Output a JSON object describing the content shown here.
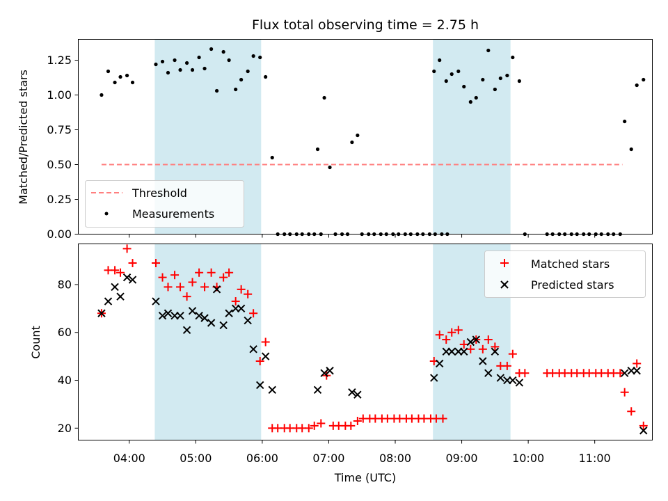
{
  "chart_data": [
    {
      "type": "scatter",
      "title": "Flux total observing time = 2.75 h",
      "ylabel": "Matched/Predicted stars",
      "xlabel": "",
      "ylim": [
        0,
        1.4
      ],
      "xlim": [
        "03:14",
        "11:52"
      ],
      "yticks": [
        "0.00",
        "0.25",
        "0.50",
        "0.75",
        "1.00",
        "1.25"
      ],
      "shaded_intervals": [
        [
          "04:23",
          "05:59"
        ],
        [
          "08:34",
          "09:44"
        ]
      ],
      "shade_color": "#add8e6",
      "legend_position": "lower-left",
      "threshold": {
        "name": "Threshold",
        "value": 0.5,
        "x_start": "03:35",
        "x_end": "11:25",
        "color": "#ff7f7f"
      },
      "series": [
        {
          "name": "Measurements",
          "color": "#000000",
          "points": [
            [
              "03:35",
              1.0
            ],
            [
              "03:41",
              1.17
            ],
            [
              "03:47",
              1.09
            ],
            [
              "03:52",
              1.13
            ],
            [
              "03:58",
              1.14
            ],
            [
              "04:03",
              1.09
            ],
            [
              "04:24",
              1.22
            ],
            [
              "04:30",
              1.24
            ],
            [
              "04:35",
              1.16
            ],
            [
              "04:41",
              1.25
            ],
            [
              "04:46",
              1.18
            ],
            [
              "04:52",
              1.23
            ],
            [
              "04:57",
              1.18
            ],
            [
              "05:03",
              1.27
            ],
            [
              "05:08",
              1.19
            ],
            [
              "05:14",
              1.33
            ],
            [
              "05:19",
              1.03
            ],
            [
              "05:25",
              1.31
            ],
            [
              "05:30",
              1.25
            ],
            [
              "05:36",
              1.04
            ],
            [
              "05:41",
              1.11
            ],
            [
              "05:47",
              1.17
            ],
            [
              "05:52",
              1.28
            ],
            [
              "05:58",
              1.27
            ],
            [
              "06:03",
              1.13
            ],
            [
              "06:09",
              0.55
            ],
            [
              "06:14",
              0.0
            ],
            [
              "06:20",
              0.0
            ],
            [
              "06:25",
              0.0
            ],
            [
              "06:31",
              0.0
            ],
            [
              "06:36",
              0.0
            ],
            [
              "06:42",
              0.0
            ],
            [
              "06:47",
              0.0
            ],
            [
              "06:53",
              0.0
            ],
            [
              "06:50",
              0.61
            ],
            [
              "06:56",
              0.98
            ],
            [
              "07:01",
              0.48
            ],
            [
              "07:06",
              0.0
            ],
            [
              "07:12",
              0.0
            ],
            [
              "07:17",
              0.0
            ],
            [
              "07:21",
              0.66
            ],
            [
              "07:26",
              0.71
            ],
            [
              "07:30",
              0.0
            ],
            [
              "07:36",
              0.0
            ],
            [
              "07:41",
              0.0
            ],
            [
              "07:47",
              0.0
            ],
            [
              "07:52",
              0.0
            ],
            [
              "07:58",
              0.0
            ],
            [
              "08:03",
              0.0
            ],
            [
              "08:09",
              0.0
            ],
            [
              "08:14",
              0.0
            ],
            [
              "08:20",
              0.0
            ],
            [
              "08:25",
              0.0
            ],
            [
              "08:31",
              0.0
            ],
            [
              "08:36",
              0.0
            ],
            [
              "08:42",
              0.0
            ],
            [
              "08:47",
              0.0
            ],
            [
              "08:35",
              1.17
            ],
            [
              "08:40",
              1.25
            ],
            [
              "08:46",
              1.1
            ],
            [
              "08:51",
              1.15
            ],
            [
              "08:57",
              1.17
            ],
            [
              "09:02",
              1.06
            ],
            [
              "09:08",
              0.95
            ],
            [
              "09:13",
              0.98
            ],
            [
              "09:19",
              1.11
            ],
            [
              "09:24",
              1.32
            ],
            [
              "09:30",
              1.04
            ],
            [
              "09:35",
              1.12
            ],
            [
              "09:41",
              1.14
            ],
            [
              "09:46",
              1.27
            ],
            [
              "09:52",
              1.1
            ],
            [
              "09:57",
              0.0
            ],
            [
              "10:17",
              0.0
            ],
            [
              "10:22",
              0.0
            ],
            [
              "10:28",
              0.0
            ],
            [
              "10:33",
              0.0
            ],
            [
              "10:39",
              0.0
            ],
            [
              "10:44",
              0.0
            ],
            [
              "10:50",
              0.0
            ],
            [
              "10:55",
              0.0
            ],
            [
              "11:01",
              0.0
            ],
            [
              "11:06",
              0.0
            ],
            [
              "11:12",
              0.0
            ],
            [
              "11:17",
              0.0
            ],
            [
              "11:23",
              0.0
            ],
            [
              "11:27",
              0.81
            ],
            [
              "11:33",
              0.61
            ],
            [
              "11:38",
              1.07
            ],
            [
              "11:44",
              1.11
            ]
          ]
        }
      ]
    },
    {
      "type": "scatter",
      "title": "",
      "xlabel": "Time (UTC)",
      "ylabel": "Count",
      "ylim": [
        15,
        97
      ],
      "xlim": [
        "03:14",
        "11:52"
      ],
      "xticks": [
        "04:00",
        "05:00",
        "06:00",
        "07:00",
        "08:00",
        "09:00",
        "10:00",
        "11:00"
      ],
      "yticks": [
        "20",
        "40",
        "60",
        "80"
      ],
      "shaded_intervals": [
        [
          "04:23",
          "05:59"
        ],
        [
          "08:34",
          "09:44"
        ]
      ],
      "shade_color": "#add8e6",
      "legend_position": "top-right",
      "series": [
        {
          "name": "Matched stars",
          "color": "#ff0000",
          "marker": "plus",
          "points": [
            [
              "03:35",
              68
            ],
            [
              "03:41",
              86
            ],
            [
              "03:47",
              86
            ],
            [
              "03:52",
              85
            ],
            [
              "03:58",
              95
            ],
            [
              "04:03",
              89
            ],
            [
              "04:24",
              89
            ],
            [
              "04:30",
              83
            ],
            [
              "04:35",
              79
            ],
            [
              "04:41",
              84
            ],
            [
              "04:46",
              79
            ],
            [
              "04:52",
              75
            ],
            [
              "04:57",
              81
            ],
            [
              "05:03",
              85
            ],
            [
              "05:08",
              79
            ],
            [
              "05:14",
              85
            ],
            [
              "05:19",
              79
            ],
            [
              "05:25",
              83
            ],
            [
              "05:30",
              85
            ],
            [
              "05:36",
              73
            ],
            [
              "05:41",
              78
            ],
            [
              "05:47",
              76
            ],
            [
              "05:52",
              68
            ],
            [
              "05:58",
              48
            ],
            [
              "06:03",
              56
            ],
            [
              "06:09",
              20
            ],
            [
              "06:14",
              20
            ],
            [
              "06:20",
              20
            ],
            [
              "06:25",
              20
            ],
            [
              "06:31",
              20
            ],
            [
              "06:36",
              20
            ],
            [
              "06:42",
              20
            ],
            [
              "06:47",
              21
            ],
            [
              "06:53",
              22
            ],
            [
              "06:58",
              42
            ],
            [
              "07:04",
              21
            ],
            [
              "07:09",
              21
            ],
            [
              "07:15",
              21
            ],
            [
              "07:20",
              21
            ],
            [
              "07:26",
              23
            ],
            [
              "07:31",
              24
            ],
            [
              "07:37",
              24
            ],
            [
              "07:42",
              24
            ],
            [
              "07:48",
              24
            ],
            [
              "07:53",
              24
            ],
            [
              "07:59",
              24
            ],
            [
              "08:04",
              24
            ],
            [
              "08:10",
              24
            ],
            [
              "08:15",
              24
            ],
            [
              "08:21",
              24
            ],
            [
              "08:26",
              24
            ],
            [
              "08:32",
              24
            ],
            [
              "08:37",
              24
            ],
            [
              "08:43",
              24
            ],
            [
              "08:35",
              48
            ],
            [
              "08:40",
              59
            ],
            [
              "08:46",
              57
            ],
            [
              "08:51",
              60
            ],
            [
              "08:57",
              61
            ],
            [
              "09:02",
              55
            ],
            [
              "09:08",
              53
            ],
            [
              "09:13",
              57
            ],
            [
              "09:19",
              53
            ],
            [
              "09:24",
              57
            ],
            [
              "09:30",
              54
            ],
            [
              "09:35",
              46
            ],
            [
              "09:41",
              46
            ],
            [
              "09:46",
              51
            ],
            [
              "09:52",
              43
            ],
            [
              "09:57",
              43
            ],
            [
              "10:17",
              43
            ],
            [
              "10:22",
              43
            ],
            [
              "10:28",
              43
            ],
            [
              "10:33",
              43
            ],
            [
              "10:39",
              43
            ],
            [
              "10:44",
              43
            ],
            [
              "10:50",
              43
            ],
            [
              "10:55",
              43
            ],
            [
              "11:01",
              43
            ],
            [
              "11:06",
              43
            ],
            [
              "11:12",
              43
            ],
            [
              "11:17",
              43
            ],
            [
              "11:23",
              43
            ],
            [
              "11:27",
              35
            ],
            [
              "11:33",
              27
            ],
            [
              "11:38",
              47
            ],
            [
              "11:44",
              21
            ]
          ]
        },
        {
          "name": "Predicted stars",
          "color": "#000000",
          "marker": "x",
          "points": [
            [
              "03:35",
              68
            ],
            [
              "03:41",
              73
            ],
            [
              "03:47",
              79
            ],
            [
              "03:52",
              75
            ],
            [
              "03:58",
              83
            ],
            [
              "04:03",
              82
            ],
            [
              "04:24",
              73
            ],
            [
              "04:30",
              67
            ],
            [
              "04:35",
              68
            ],
            [
              "04:41",
              67
            ],
            [
              "04:46",
              67
            ],
            [
              "04:52",
              61
            ],
            [
              "04:57",
              69
            ],
            [
              "05:03",
              67
            ],
            [
              "05:08",
              66
            ],
            [
              "05:14",
              64
            ],
            [
              "05:19",
              78
            ],
            [
              "05:25",
              63
            ],
            [
              "05:30",
              68
            ],
            [
              "05:36",
              70
            ],
            [
              "05:41",
              70
            ],
            [
              "05:47",
              65
            ],
            [
              "05:52",
              53
            ],
            [
              "05:58",
              38
            ],
            [
              "06:03",
              50
            ],
            [
              "06:09",
              36
            ],
            [
              "06:50",
              36
            ],
            [
              "06:56",
              43
            ],
            [
              "07:01",
              44
            ],
            [
              "07:21",
              35
            ],
            [
              "07:26",
              34
            ],
            [
              "08:35",
              41
            ],
            [
              "08:40",
              47
            ],
            [
              "08:46",
              52
            ],
            [
              "08:51",
              52
            ],
            [
              "08:57",
              52
            ],
            [
              "09:02",
              52
            ],
            [
              "09:08",
              56
            ],
            [
              "09:13",
              57
            ],
            [
              "09:19",
              48
            ],
            [
              "09:24",
              43
            ],
            [
              "09:30",
              52
            ],
            [
              "09:35",
              41
            ],
            [
              "09:41",
              40
            ],
            [
              "09:46",
              40
            ],
            [
              "09:52",
              39
            ],
            [
              "11:27",
              43
            ],
            [
              "11:33",
              44
            ],
            [
              "11:38",
              44
            ],
            [
              "11:44",
              19
            ]
          ]
        }
      ]
    }
  ]
}
